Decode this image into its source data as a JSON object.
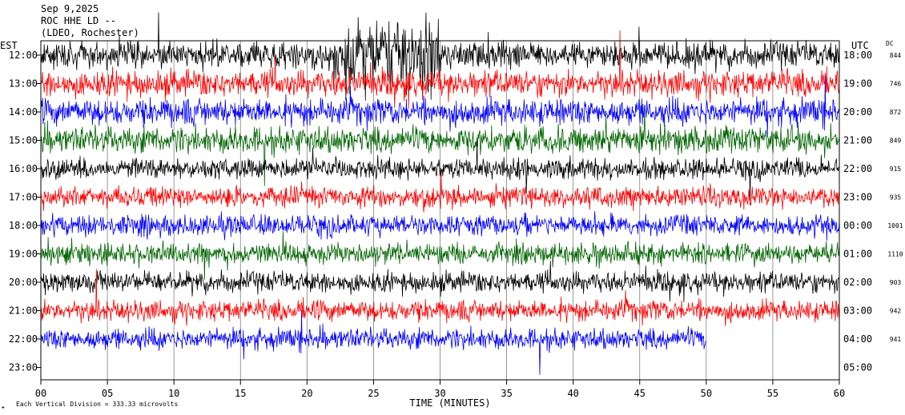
{
  "chart_data": {
    "type": "line",
    "title_lines": [
      "Sep 9,2025",
      "ROC HHE LD --",
      "(LDEO, Rochester)"
    ],
    "left_axis_label": "EST",
    "right_axis_label": "UTC",
    "dc_label": "DC",
    "xlabel": "TIME (MINUTES)",
    "footer": "Each Vertical Division =  333.33 microvolts",
    "x_ticks": [
      "00",
      "05",
      "10",
      "15",
      "20",
      "25",
      "30",
      "35",
      "40",
      "45",
      "50",
      "55",
      "60"
    ],
    "xlim": [
      0,
      60
    ],
    "grid": "vertical only",
    "trace_colors": [
      "#000000",
      "#ff0000",
      "#0000ff",
      "#006400"
    ],
    "rows": [
      {
        "est": "12:00",
        "utc": "18:00",
        "dc": "844",
        "amplitude": "high",
        "end_minute": 60
      },
      {
        "est": "13:00",
        "utc": "19:00",
        "dc": "746",
        "amplitude": "high",
        "end_minute": 60
      },
      {
        "est": "14:00",
        "utc": "20:00",
        "dc": "872",
        "amplitude": "high",
        "end_minute": 60
      },
      {
        "est": "15:00",
        "utc": "21:00",
        "dc": "849",
        "amplitude": "high",
        "end_minute": 60
      },
      {
        "est": "16:00",
        "utc": "22:00",
        "dc": "915",
        "amplitude": "medium",
        "end_minute": 60
      },
      {
        "est": "17:00",
        "utc": "23:00",
        "dc": "935",
        "amplitude": "medium",
        "end_minute": 60
      },
      {
        "est": "18:00",
        "utc": "00:00",
        "dc": "1001",
        "amplitude": "medium",
        "end_minute": 60
      },
      {
        "est": "19:00",
        "utc": "01:00",
        "dc": "1110",
        "amplitude": "medium",
        "end_minute": 60
      },
      {
        "est": "20:00",
        "utc": "02:00",
        "dc": "903",
        "amplitude": "medium",
        "end_minute": 60
      },
      {
        "est": "21:00",
        "utc": "03:00",
        "dc": "942",
        "amplitude": "medium",
        "end_minute": 60
      },
      {
        "est": "22:00",
        "utc": "04:00",
        "dc": "941",
        "amplitude": "medium",
        "end_minute": 50
      },
      {
        "est": "23:00",
        "utc": "05:00",
        "dc": "",
        "amplitude": "none",
        "end_minute": 0
      }
    ]
  }
}
